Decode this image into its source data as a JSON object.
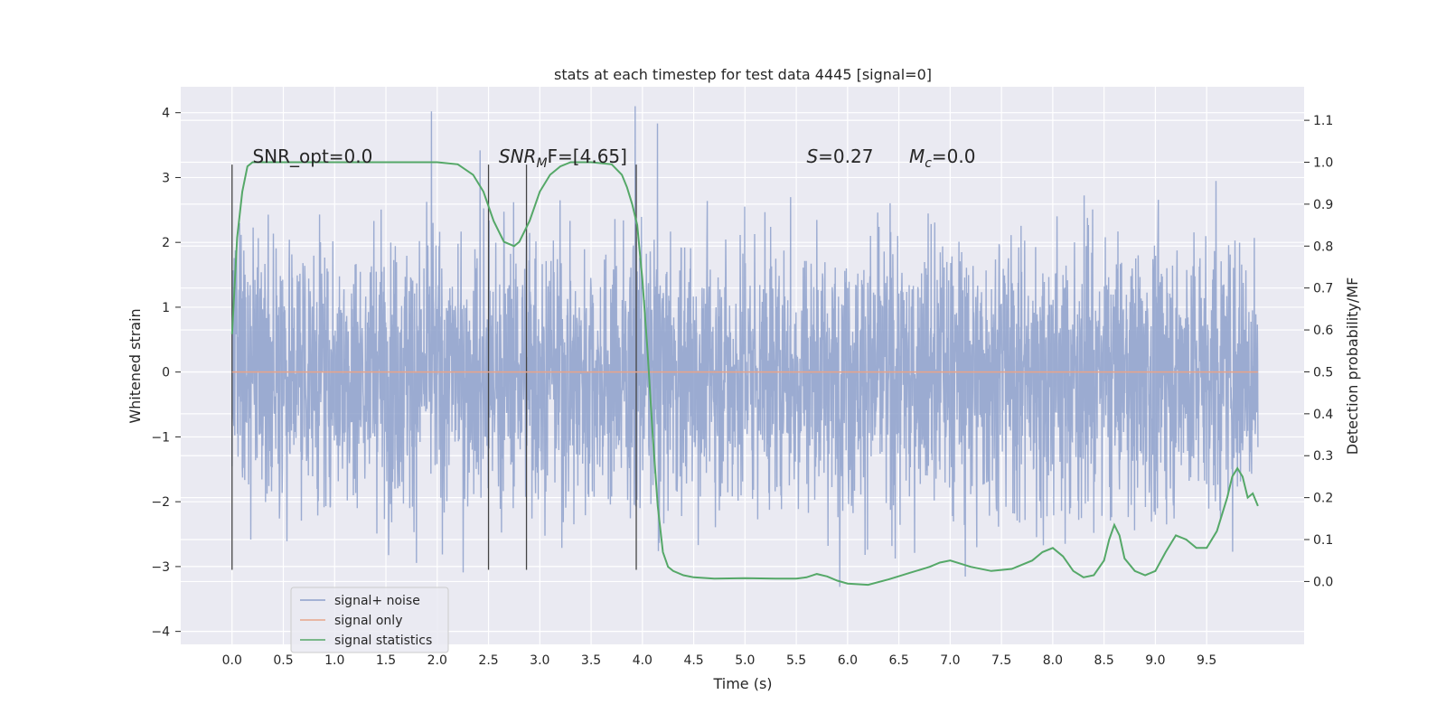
{
  "chart_data": {
    "type": "line",
    "title": "stats at each timestep for test data 4445 [signal=0]",
    "xlabel": "Time (s)",
    "ylabel_left": "Whitened strain",
    "ylabel_right": "Detection probability/MF",
    "xlim": [
      -0.5,
      10.45
    ],
    "ylim_left": [
      -4.2,
      4.4
    ],
    "ylim_right": [
      -0.15,
      1.18
    ],
    "grid": true,
    "x_ticks": [
      "0.0",
      "0.5",
      "1.0",
      "1.5",
      "2.0",
      "2.5",
      "3.0",
      "3.5",
      "4.0",
      "4.5",
      "5.0",
      "5.5",
      "6.0",
      "6.5",
      "7.0",
      "7.5",
      "8.0",
      "8.5",
      "9.0",
      "9.5"
    ],
    "x_tick_values": [
      0.0,
      0.5,
      1.0,
      1.5,
      2.0,
      2.5,
      3.0,
      3.5,
      4.0,
      4.5,
      5.0,
      5.5,
      6.0,
      6.5,
      7.0,
      7.5,
      8.0,
      8.5,
      9.0,
      9.5
    ],
    "y_left_ticks": [
      "−4",
      "−3",
      "−2",
      "−1",
      "0",
      "1",
      "2",
      "3",
      "4"
    ],
    "y_left_tick_values": [
      -4,
      -3,
      -2,
      -1,
      0,
      1,
      2,
      3,
      4
    ],
    "y_right_ticks": [
      "0.0",
      "0.1",
      "0.2",
      "0.3",
      "0.4",
      "0.5",
      "0.6",
      "0.7",
      "0.8",
      "0.9",
      "1.0",
      "1.1"
    ],
    "y_right_tick_values": [
      0.0,
      0.1,
      0.2,
      0.3,
      0.4,
      0.5,
      0.6,
      0.7,
      0.8,
      0.9,
      1.0,
      1.1
    ],
    "series": [
      {
        "name": "signal+ noise",
        "axis": "left",
        "color": "#8da0cb",
        "note": "dense whitened-noise trace, body roughly ±1.3 with spikes from about −3.9 to 4.1",
        "x_range": [
          0.0,
          10.0
        ],
        "core_amplitude": 1.3,
        "extremes": [
          -3.9,
          4.1
        ]
      },
      {
        "name": "signal only",
        "axis": "left",
        "color": "#e8a48a",
        "x": [
          0.0,
          10.0
        ],
        "y": [
          0.0,
          0.0
        ]
      },
      {
        "name": "signal statistics",
        "axis": "right",
        "color": "#55a868",
        "x": [
          0.0,
          0.05,
          0.1,
          0.15,
          0.2,
          0.3,
          0.5,
          1.0,
          1.5,
          2.0,
          2.2,
          2.35,
          2.45,
          2.55,
          2.65,
          2.75,
          2.8,
          2.9,
          3.0,
          3.1,
          3.2,
          3.3,
          3.5,
          3.7,
          3.8,
          3.85,
          3.9,
          3.95,
          4.0,
          4.05,
          4.1,
          4.15,
          4.2,
          4.25,
          4.3,
          4.4,
          4.5,
          4.7,
          5.0,
          5.3,
          5.5,
          5.6,
          5.7,
          5.8,
          5.9,
          6.0,
          6.2,
          6.4,
          6.6,
          6.8,
          6.9,
          7.0,
          7.2,
          7.4,
          7.6,
          7.8,
          7.9,
          8.0,
          8.1,
          8.2,
          8.3,
          8.4,
          8.5,
          8.55,
          8.6,
          8.65,
          8.7,
          8.8,
          8.9,
          9.0,
          9.1,
          9.2,
          9.3,
          9.4,
          9.5,
          9.6,
          9.7,
          9.75,
          9.8,
          9.85,
          9.9,
          9.95,
          10.0
        ],
        "y": [
          0.59,
          0.82,
          0.93,
          0.99,
          1.0,
          1.0,
          1.0,
          1.0,
          1.0,
          1.0,
          0.995,
          0.97,
          0.93,
          0.86,
          0.81,
          0.8,
          0.81,
          0.86,
          0.93,
          0.97,
          0.99,
          1.0,
          1.0,
          0.995,
          0.97,
          0.94,
          0.9,
          0.85,
          0.72,
          0.55,
          0.35,
          0.18,
          0.07,
          0.035,
          0.025,
          0.015,
          0.01,
          0.007,
          0.008,
          0.007,
          0.007,
          0.01,
          0.018,
          0.012,
          0.002,
          -0.005,
          -0.008,
          0.005,
          0.02,
          0.035,
          0.045,
          0.05,
          0.035,
          0.025,
          0.03,
          0.05,
          0.07,
          0.08,
          0.06,
          0.025,
          0.01,
          0.015,
          0.05,
          0.1,
          0.135,
          0.11,
          0.055,
          0.025,
          0.015,
          0.025,
          0.07,
          0.11,
          0.1,
          0.08,
          0.08,
          0.12,
          0.2,
          0.25,
          0.27,
          0.25,
          0.2,
          0.21,
          0.18
        ]
      }
    ],
    "vlines": [
      0.0,
      2.5,
      2.87,
      3.94
    ],
    "vline_range_left": [
      -3.05,
      3.2
    ],
    "annotations": [
      {
        "key": "snr_opt",
        "text": "SNR_opt=0.0",
        "x": 0.2
      },
      {
        "key": "snr_mf",
        "base": "SNR",
        "sub": "M",
        "rest": "F=[4.65]",
        "x": 2.6
      },
      {
        "key": "s",
        "base": "S",
        "rest": "=0.27",
        "x": 5.6
      },
      {
        "key": "mc",
        "base": "M",
        "sub": "c",
        "rest": "=0.0",
        "x": 6.6
      }
    ],
    "annotation_y_left": 3.2,
    "legend": {
      "position": "lower-left",
      "entries": [
        {
          "label": "signal+ noise",
          "color": "#8da0cb"
        },
        {
          "label": "signal only",
          "color": "#e8a48a"
        },
        {
          "label": "signal statistics",
          "color": "#55a868"
        }
      ]
    }
  }
}
